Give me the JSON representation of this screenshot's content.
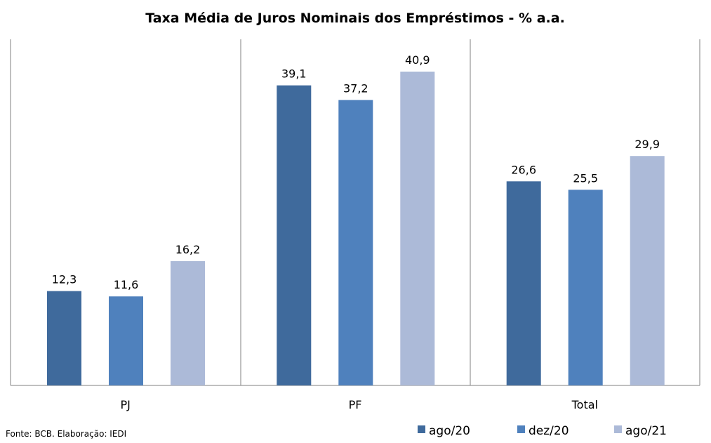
{
  "chart_data": {
    "type": "bar",
    "title": "Taxa Média de Juros Nominais dos Empréstimos - % a.a.",
    "categories": [
      "PJ",
      "PF",
      "Total"
    ],
    "series": [
      {
        "name": "ago/20",
        "values": [
          12.3,
          39.1,
          26.6
        ],
        "labels": [
          "12,3",
          "39,1",
          "26,6"
        ],
        "color": "#3f6a9c"
      },
      {
        "name": "dez/20",
        "values": [
          11.6,
          37.2,
          25.5
        ],
        "labels": [
          "11,6",
          "37,2",
          "25,5"
        ],
        "color": "#4f81bd"
      },
      {
        "name": "ago/21",
        "values": [
          16.2,
          40.9,
          29.9
        ],
        "labels": [
          "16,2",
          "40,9",
          "29,9"
        ],
        "color": "#acbad8"
      }
    ],
    "ylim": [
      0,
      47
    ],
    "grid": false,
    "legend_position": "bottom-right",
    "source": "Fonte:  BCB. Elaboração: IEDI"
  }
}
